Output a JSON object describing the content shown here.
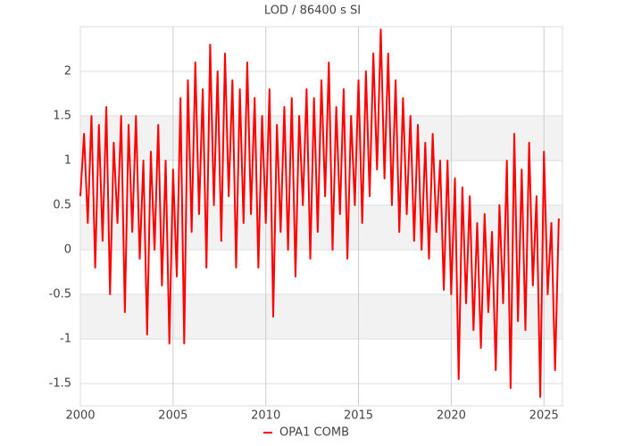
{
  "chart_data": {
    "type": "line",
    "title": "LOD / 86400 s SI",
    "x": [
      2000.0,
      2000.2,
      2000.4,
      2000.6,
      2000.8,
      2001.0,
      2001.2,
      2001.4,
      2001.6,
      2001.8,
      2002.0,
      2002.2,
      2002.4,
      2002.6,
      2002.8,
      2003.0,
      2003.2,
      2003.4,
      2003.6,
      2003.8,
      2004.0,
      2004.2,
      2004.4,
      2004.6,
      2004.8,
      2005.0,
      2005.2,
      2005.4,
      2005.6,
      2005.8,
      2006.0,
      2006.2,
      2006.4,
      2006.6,
      2006.8,
      2007.0,
      2007.2,
      2007.4,
      2007.6,
      2007.8,
      2008.0,
      2008.2,
      2008.4,
      2008.6,
      2008.8,
      2009.0,
      2009.2,
      2009.4,
      2009.6,
      2009.8,
      2010.0,
      2010.2,
      2010.4,
      2010.6,
      2010.8,
      2011.0,
      2011.2,
      2011.4,
      2011.6,
      2011.8,
      2012.0,
      2012.2,
      2012.4,
      2012.6,
      2012.8,
      2013.0,
      2013.2,
      2013.4,
      2013.6,
      2013.8,
      2014.0,
      2014.2,
      2014.4,
      2014.6,
      2014.8,
      2015.0,
      2015.2,
      2015.4,
      2015.6,
      2015.8,
      2016.0,
      2016.2,
      2016.4,
      2016.6,
      2016.8,
      2017.0,
      2017.2,
      2017.4,
      2017.6,
      2017.8,
      2018.0,
      2018.2,
      2018.4,
      2018.6,
      2018.8,
      2019.0,
      2019.2,
      2019.4,
      2019.6,
      2019.8,
      2020.0,
      2020.2,
      2020.4,
      2020.6,
      2020.8,
      2021.0,
      2021.2,
      2021.4,
      2021.6,
      2021.8,
      2022.0,
      2022.2,
      2022.4,
      2022.6,
      2022.8,
      2023.0,
      2023.2,
      2023.4,
      2023.6,
      2023.8,
      2024.0,
      2024.2,
      2024.4,
      2024.6,
      2024.8,
      2025.0,
      2025.2,
      2025.4,
      2025.6,
      2025.8
    ],
    "series": [
      {
        "name": "OPA1 COMB",
        "color": "#ff0000",
        "values": [
          0.6,
          1.3,
          0.3,
          1.5,
          -0.2,
          1.4,
          0.1,
          1.6,
          -0.5,
          1.2,
          0.3,
          1.5,
          -0.7,
          1.4,
          0.2,
          1.5,
          -0.1,
          1.0,
          -0.95,
          1.1,
          0.0,
          1.4,
          -0.4,
          1.0,
          -1.05,
          0.9,
          -0.3,
          1.7,
          -1.05,
          1.9,
          0.2,
          2.1,
          0.4,
          1.8,
          -0.2,
          2.3,
          0.5,
          2.0,
          0.1,
          2.2,
          0.6,
          1.9,
          -0.2,
          1.8,
          0.3,
          2.1,
          0.4,
          1.7,
          -0.2,
          1.5,
          0.3,
          1.8,
          -0.75,
          1.4,
          0.2,
          1.6,
          0.0,
          1.7,
          -0.3,
          1.5,
          0.5,
          1.8,
          -0.1,
          1.7,
          0.2,
          1.9,
          0.6,
          2.1,
          0.0,
          1.6,
          0.4,
          1.8,
          -0.1,
          1.5,
          0.5,
          1.9,
          0.3,
          2.0,
          0.6,
          2.2,
          0.9,
          2.47,
          0.8,
          2.2,
          0.5,
          1.9,
          0.2,
          1.7,
          0.4,
          1.5,
          0.1,
          1.4,
          0.0,
          1.2,
          -0.1,
          1.3,
          0.2,
          1.0,
          -0.45,
          1.0,
          -0.5,
          0.8,
          -1.45,
          0.7,
          -0.6,
          0.6,
          -0.9,
          0.3,
          -1.1,
          0.4,
          -0.7,
          0.2,
          -1.35,
          0.5,
          -0.6,
          1.0,
          -1.55,
          1.3,
          -0.8,
          0.9,
          -0.9,
          1.2,
          -0.4,
          0.6,
          -1.65,
          1.1,
          -0.5,
          0.3,
          -1.35,
          0.35
        ]
      }
    ],
    "xlim": [
      2000,
      2026
    ],
    "xticks": [
      2000,
      2005,
      2010,
      2015,
      2020,
      2025
    ],
    "ylim": [
      -1.75,
      2.5
    ],
    "yticks": [
      -1.5,
      -1,
      -0.5,
      0,
      0.5,
      1,
      1.5,
      2
    ],
    "grid": true
  }
}
